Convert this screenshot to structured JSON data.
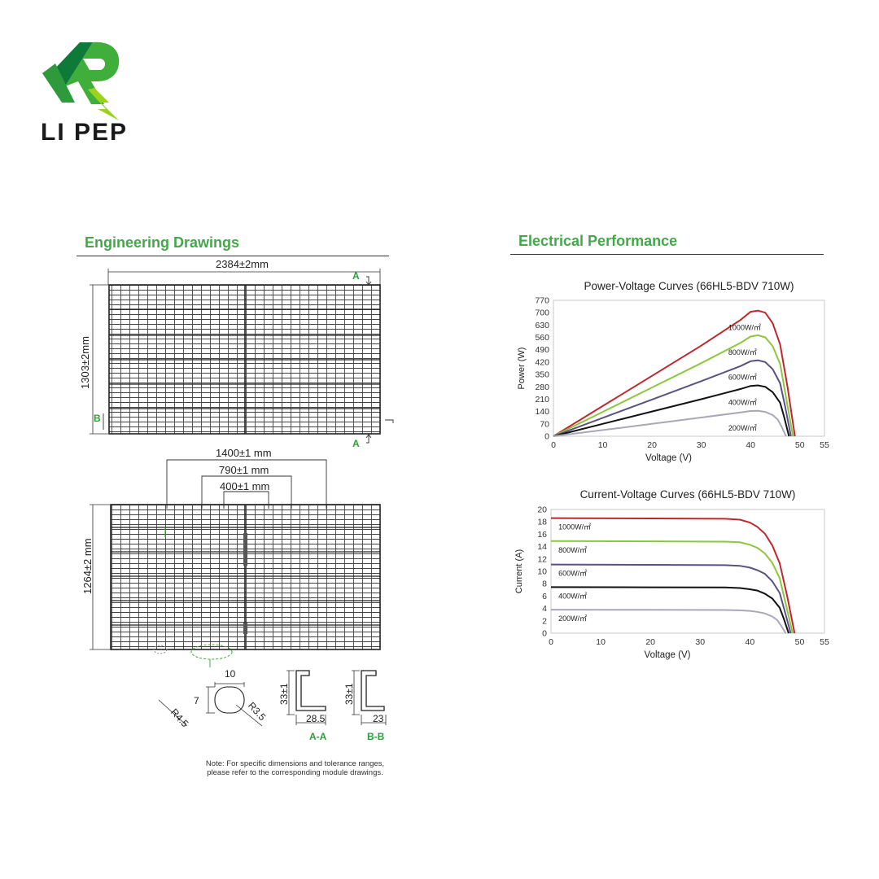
{
  "brand": {
    "name": "LI PEP",
    "colors": {
      "green": "#3fae3a",
      "lime": "#9bd21c",
      "dark_green": "#0e7a3a"
    }
  },
  "sections": {
    "engineering": "Engineering Drawings",
    "electrical": "Electrical Performance"
  },
  "drawing": {
    "width_dim": "2384±2mm",
    "height_dim": "1303±2mm",
    "section_marker_a": "A",
    "section_marker_b": "B",
    "dim_1400": "1400±1 mm",
    "dim_790": "790±1 mm",
    "dim_400": "400±1 mm",
    "height_dim_2": "1264±2 mm",
    "hole": {
      "width": "10",
      "height": "7",
      "r_left": "R4.5",
      "r_right": "R3.5"
    },
    "profile_aa": {
      "height": "33±1",
      "width": "28.5",
      "label": "A-A"
    },
    "profile_bb": {
      "height": "33±1",
      "width": "23",
      "label": "B-B"
    },
    "note_line1": "Note: For specific dimensions and tolerance ranges,",
    "note_line2": "please refer to the corresponding module drawings."
  },
  "chart_data": [
    {
      "type": "line",
      "title": "Power-Voltage Curves (66HL5-BDV 710W)",
      "xlabel": "Voltage (V)",
      "ylabel": "Power (W)",
      "xlim": [
        0,
        55
      ],
      "ylim": [
        0,
        770
      ],
      "xticks": [
        0,
        10,
        20,
        30,
        40,
        50,
        55
      ],
      "yticks": [
        0,
        70,
        140,
        210,
        280,
        350,
        420,
        490,
        560,
        630,
        700,
        770
      ],
      "series": [
        {
          "name": "1000W/㎡",
          "color": "#c0272d",
          "x": [
            0,
            10,
            20,
            30,
            38,
            40,
            41.5,
            43,
            44.5,
            46,
            47.5,
            49
          ],
          "y": [
            0,
            171,
            342,
            513,
            660,
            705,
            712,
            700,
            640,
            520,
            280,
            0
          ]
        },
        {
          "name": "800W/㎡",
          "color": "#8dc63f",
          "x": [
            0,
            10,
            20,
            30,
            38,
            40,
            41.5,
            43,
            44.5,
            46,
            47.2,
            48.6
          ],
          "y": [
            0,
            138,
            276,
            414,
            530,
            565,
            572,
            560,
            510,
            410,
            220,
            0
          ]
        },
        {
          "name": "600W/㎡",
          "color": "#5a5282",
          "x": [
            0,
            10,
            20,
            30,
            38,
            40,
            41.5,
            43,
            44.5,
            46,
            47,
            48.2
          ],
          "y": [
            0,
            104,
            208,
            312,
            398,
            425,
            430,
            420,
            380,
            300,
            170,
            0
          ]
        },
        {
          "name": "400W/㎡",
          "color": "#111111",
          "x": [
            0,
            10,
            20,
            30,
            38,
            40,
            41.5,
            43,
            44.5,
            46,
            46.8,
            47.8
          ],
          "y": [
            0,
            70,
            140,
            210,
            268,
            285,
            288,
            280,
            250,
            190,
            110,
            0
          ]
        },
        {
          "name": "200W/㎡",
          "color": "#a8a8b8",
          "x": [
            0,
            10,
            20,
            30,
            38,
            40,
            41.5,
            43,
            44.5,
            45.5,
            46.3,
            47.2
          ],
          "y": [
            0,
            35,
            70,
            106,
            135,
            143,
            144,
            138,
            120,
            95,
            55,
            0
          ]
        }
      ]
    },
    {
      "type": "line",
      "title": "Current-Voltage Curves (66HL5-BDV 710W)",
      "xlabel": "Voltage (V)",
      "ylabel": "Current (A)",
      "xlim": [
        0,
        55
      ],
      "ylim": [
        0,
        20
      ],
      "xticks": [
        0,
        10,
        20,
        30,
        40,
        50,
        55
      ],
      "yticks": [
        0,
        2,
        4,
        6,
        8,
        10,
        12,
        14,
        16,
        18,
        20
      ],
      "series": [
        {
          "name": "1000W/㎡",
          "color": "#c0272d",
          "x": [
            0,
            20,
            35,
            38,
            40,
            41.5,
            43,
            44.5,
            46,
            47.5,
            49
          ],
          "y": [
            18.6,
            18.55,
            18.5,
            18.35,
            17.9,
            17.2,
            16.1,
            14.2,
            11.3,
            6.0,
            0
          ]
        },
        {
          "name": "800W/㎡",
          "color": "#8dc63f",
          "x": [
            0,
            20,
            35,
            38,
            40,
            41.5,
            43,
            44.5,
            46,
            47.2,
            48.6
          ],
          "y": [
            14.9,
            14.85,
            14.8,
            14.7,
            14.3,
            13.8,
            12.9,
            11.4,
            8.9,
            4.8,
            0
          ]
        },
        {
          "name": "600W/㎡",
          "color": "#5a5282",
          "x": [
            0,
            20,
            35,
            38,
            40,
            41.5,
            43,
            44.5,
            46,
            47,
            48.2
          ],
          "y": [
            11.1,
            11.05,
            11.0,
            10.9,
            10.6,
            10.2,
            9.6,
            8.4,
            6.5,
            3.6,
            0
          ]
        },
        {
          "name": "400W/㎡",
          "color": "#111111",
          "x": [
            0,
            20,
            35,
            38,
            40,
            41.5,
            43,
            44.5,
            46,
            46.8,
            47.8
          ],
          "y": [
            7.45,
            7.42,
            7.4,
            7.3,
            7.1,
            6.9,
            6.4,
            5.6,
            4.1,
            2.4,
            0
          ]
        },
        {
          "name": "200W/㎡",
          "color": "#a8a8b8",
          "x": [
            0,
            20,
            35,
            38,
            40,
            41.5,
            43,
            44.5,
            45.5,
            46.3,
            47.2
          ],
          "y": [
            3.8,
            3.78,
            3.75,
            3.7,
            3.6,
            3.45,
            3.2,
            2.7,
            2.1,
            1.2,
            0
          ]
        }
      ]
    }
  ]
}
